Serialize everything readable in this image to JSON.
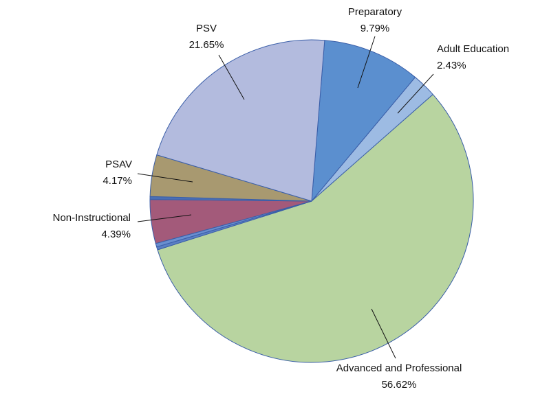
{
  "chart_data": {
    "type": "pie",
    "categories": [
      "Preparatory",
      "Adult Education",
      "Advanced and Professional",
      null,
      null,
      "Non-Instructional",
      null,
      "PSAV",
      "PSV"
    ],
    "values": [
      9.79,
      2.43,
      56.62,
      0.3,
      0.35,
      4.39,
      0.3,
      4.17,
      21.65
    ],
    "value_labels": [
      "9.79%",
      "2.43%",
      "56.62%",
      null,
      null,
      "4.39%",
      null,
      "4.17%",
      "21.65%"
    ],
    "colors": [
      "#5b8fcf",
      "#9dbbe3",
      "#b8d4a0",
      "#5b7fc4",
      "#6a8fd0",
      "#a35a7a",
      "#4a6fb5",
      "#a89970",
      "#b3bbde"
    ]
  }
}
